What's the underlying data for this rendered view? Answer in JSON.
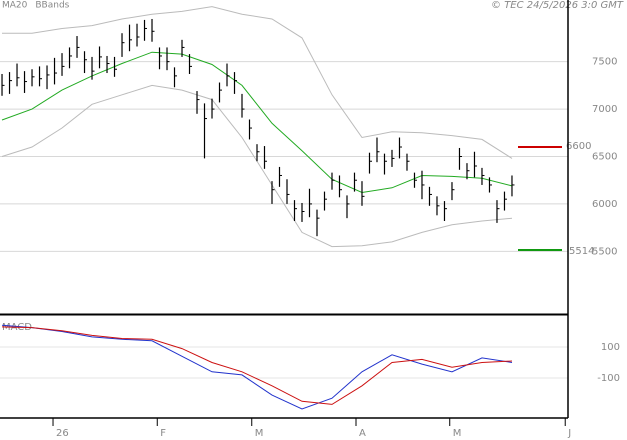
{
  "chart_data": [
    {
      "type": "ohlc",
      "credit": "© TEC 24/5/2026 3:0 GMT",
      "xlim": [
        -0.27,
        75.47
      ],
      "xticks": [
        {
          "value": 6.8,
          "label": "26"
        },
        {
          "value": 20.7,
          "label": "F"
        },
        {
          "value": 33.3,
          "label": "M"
        },
        {
          "value": 47.2,
          "label": "A"
        },
        {
          "value": 59.7,
          "label": "M"
        },
        {
          "value": 75.1,
          "label": "J"
        }
      ],
      "ylim": [
        4850,
        8150
      ],
      "yticks": [
        5500,
        6000,
        6500,
        7000,
        7500
      ],
      "grid": true,
      "bars": {
        "color": "#000000",
        "x": [
          0,
          1,
          2,
          3,
          4,
          5,
          6,
          7,
          8,
          9,
          10,
          11,
          12,
          13,
          14,
          15,
          16,
          17,
          18,
          19,
          20,
          21,
          22,
          23,
          24,
          25,
          26,
          27,
          28,
          29,
          30,
          31,
          32,
          33,
          34,
          35,
          36,
          37,
          38,
          39,
          40,
          41,
          42,
          43,
          44,
          45,
          46,
          47,
          48,
          49,
          50,
          51,
          52,
          53,
          54,
          55,
          56,
          57,
          58,
          59,
          60,
          61,
          62,
          63,
          64,
          65,
          66,
          67,
          68
        ],
        "high": [
          7370,
          7390,
          7480,
          7400,
          7420,
          7450,
          7460,
          7540,
          7590,
          7650,
          7770,
          7610,
          7550,
          7660,
          7560,
          7550,
          7800,
          7890,
          7900,
          7940,
          7950,
          7650,
          7650,
          7440,
          7730,
          7580,
          7190,
          7060,
          7110,
          7280,
          7480,
          7390,
          7160,
          6890,
          6630,
          6610,
          6240,
          6390,
          6260,
          6040,
          6010,
          6160,
          5940,
          6130,
          6330,
          6300,
          6090,
          6330,
          6240,
          6540,
          6700,
          6530,
          6570,
          6700,
          6530,
          6330,
          6350,
          6180,
          6080,
          6030,
          6230,
          6590,
          6430,
          6550,
          6380,
          6280,
          6040,
          6130,
          6300
        ],
        "low": [
          7140,
          7160,
          7240,
          7170,
          7240,
          7240,
          7210,
          7260,
          7350,
          7430,
          7540,
          7380,
          7310,
          7430,
          7380,
          7340,
          7550,
          7610,
          7660,
          7720,
          7710,
          7420,
          7410,
          7230,
          7550,
          7370,
          6950,
          6480,
          6900,
          7070,
          7240,
          7160,
          6910,
          6680,
          6450,
          6370,
          6000,
          6180,
          6000,
          5820,
          5810,
          5860,
          5660,
          5930,
          6150,
          6070,
          5850,
          6130,
          5980,
          6320,
          6440,
          6310,
          6390,
          6480,
          6350,
          6170,
          6050,
          5980,
          5880,
          5820,
          6040,
          6360,
          6260,
          6280,
          6200,
          6120,
          5800,
          5930,
          6080
        ],
        "close": [
          7250,
          7300,
          7330,
          7290,
          7340,
          7320,
          7360,
          7380,
          7450,
          7560,
          7650,
          7520,
          7400,
          7550,
          7480,
          7420,
          7700,
          7730,
          7760,
          7850,
          7820,
          7560,
          7500,
          7350,
          7650,
          7450,
          7100,
          6900,
          7000,
          7200,
          7350,
          7300,
          7000,
          6800,
          6550,
          6450,
          6150,
          6300,
          6100,
          5950,
          5920,
          6000,
          5850,
          6050,
          6250,
          6150,
          6000,
          6250,
          6080,
          6450,
          6550,
          6450,
          6480,
          6600,
          6450,
          6250,
          6200,
          6100,
          5980,
          5950,
          6150,
          6500,
          6350,
          6400,
          6300,
          6200,
          5950,
          6050,
          6200
        ]
      },
      "series": [
        {
          "name": "MA20",
          "color": "#22aa22",
          "x": [
            0,
            4,
            8,
            12,
            16,
            20,
            24,
            28,
            32,
            36,
            40,
            44,
            48,
            52,
            56,
            60,
            64,
            68
          ],
          "values": [
            6885,
            7000,
            7200,
            7350,
            7480,
            7600,
            7580,
            7470,
            7250,
            6850,
            6560,
            6260,
            6120,
            6170,
            6300,
            6290,
            6270,
            6190
          ]
        },
        {
          "name": "BBands",
          "color": "#bbbbbb",
          "x": [
            0,
            4,
            8,
            12,
            16,
            20,
            24,
            28,
            32,
            36,
            40,
            44,
            48,
            52,
            56,
            60,
            64,
            68
          ],
          "upper": [
            7800,
            7800,
            7850,
            7880,
            7950,
            8000,
            8030,
            8080,
            8000,
            7950,
            7750,
            7150,
            6700,
            6760,
            6750,
            6720,
            6680,
            6480
          ],
          "lower": [
            6500,
            6600,
            6800,
            7050,
            7150,
            7250,
            7200,
            7100,
            6700,
            6200,
            5700,
            5550,
            5560,
            5600,
            5700,
            5780,
            5820,
            5850
          ]
        }
      ],
      "levels": [
        {
          "value": 6600,
          "color": "#cc0000"
        },
        {
          "value": 5514,
          "color": "#119911"
        }
      ]
    },
    {
      "type": "line",
      "title": "MACD",
      "ylim": [
        -358,
        300
      ],
      "yticks": [
        100,
        -100
      ],
      "series": [
        {
          "color": "#2233cc",
          "x": [
            0,
            4,
            8,
            12,
            16,
            20,
            24,
            28,
            32,
            36,
            40,
            44,
            48,
            52,
            56,
            60,
            64,
            68
          ],
          "values": [
            240,
            225,
            200,
            165,
            150,
            140,
            40,
            -60,
            -80,
            -210,
            -300,
            -230,
            -60,
            50,
            -10,
            -60,
            30,
            0
          ]
        },
        {
          "color": "#cc1111",
          "x": [
            0,
            4,
            8,
            12,
            16,
            20,
            24,
            28,
            32,
            36,
            40,
            44,
            48,
            52,
            56,
            60,
            64,
            68
          ],
          "values": [
            230,
            225,
            205,
            175,
            155,
            150,
            90,
            0,
            -60,
            -150,
            -250,
            -270,
            -150,
            0,
            20,
            -30,
            0,
            10
          ]
        }
      ]
    }
  ]
}
